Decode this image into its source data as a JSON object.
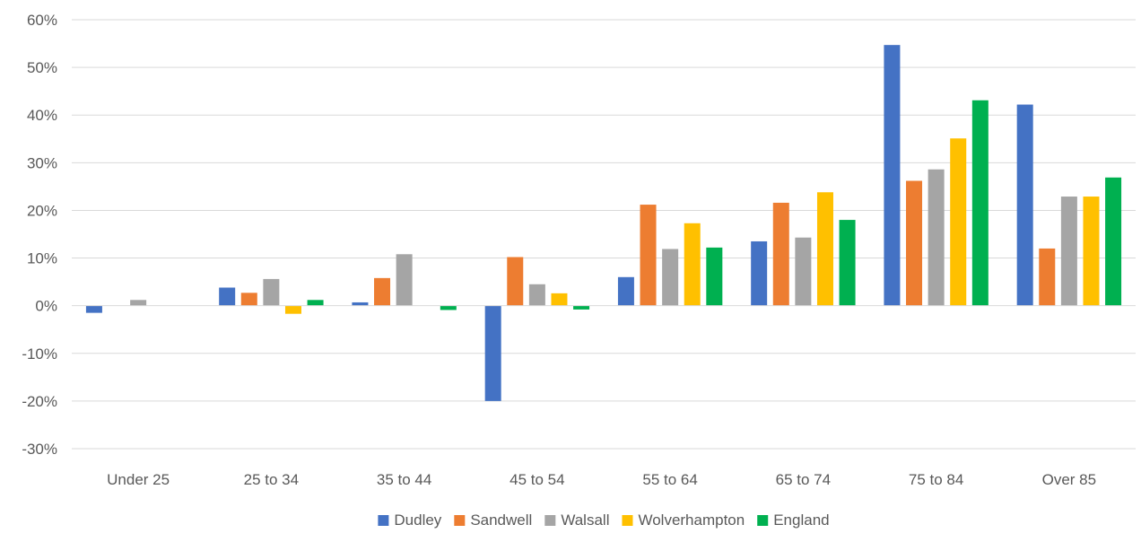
{
  "chart_data": {
    "type": "bar",
    "title": "",
    "xlabel": "",
    "ylabel": "",
    "categories": [
      "Under 25",
      "25 to 34",
      "35 to 44",
      "45 to 54",
      "55 to 64",
      "65 to 74",
      "75 to 84",
      "Over 85"
    ],
    "series": [
      {
        "name": "Dudley",
        "color": "#4472C4",
        "values": [
          -1.5,
          3.8,
          0.7,
          -20.0,
          6.0,
          13.5,
          54.7,
          42.2
        ]
      },
      {
        "name": "Sandwell",
        "color": "#ED7D31",
        "values": [
          0.0,
          2.7,
          5.8,
          10.2,
          21.2,
          21.6,
          26.2,
          12.0
        ]
      },
      {
        "name": "Walsall",
        "color": "#A5A5A5",
        "values": [
          1.2,
          5.6,
          10.8,
          4.5,
          11.9,
          14.3,
          28.6,
          22.9
        ]
      },
      {
        "name": "Wolverhampton",
        "color": "#FFC000",
        "values": [
          0.0,
          -1.7,
          0.0,
          2.6,
          17.3,
          23.8,
          35.1,
          22.9
        ]
      },
      {
        "name": "England",
        "color": "#00B050",
        "values": [
          0.0,
          1.2,
          -0.9,
          -0.8,
          12.2,
          18.0,
          43.1,
          26.9
        ]
      }
    ],
    "ylim": [
      -30,
      60
    ],
    "ytick_step": 10,
    "ytick_labels": [
      "-30%",
      "-20%",
      "-10%",
      "0%",
      "10%",
      "20%",
      "30%",
      "40%",
      "50%",
      "60%"
    ],
    "grid": true,
    "legend": "bottom"
  }
}
